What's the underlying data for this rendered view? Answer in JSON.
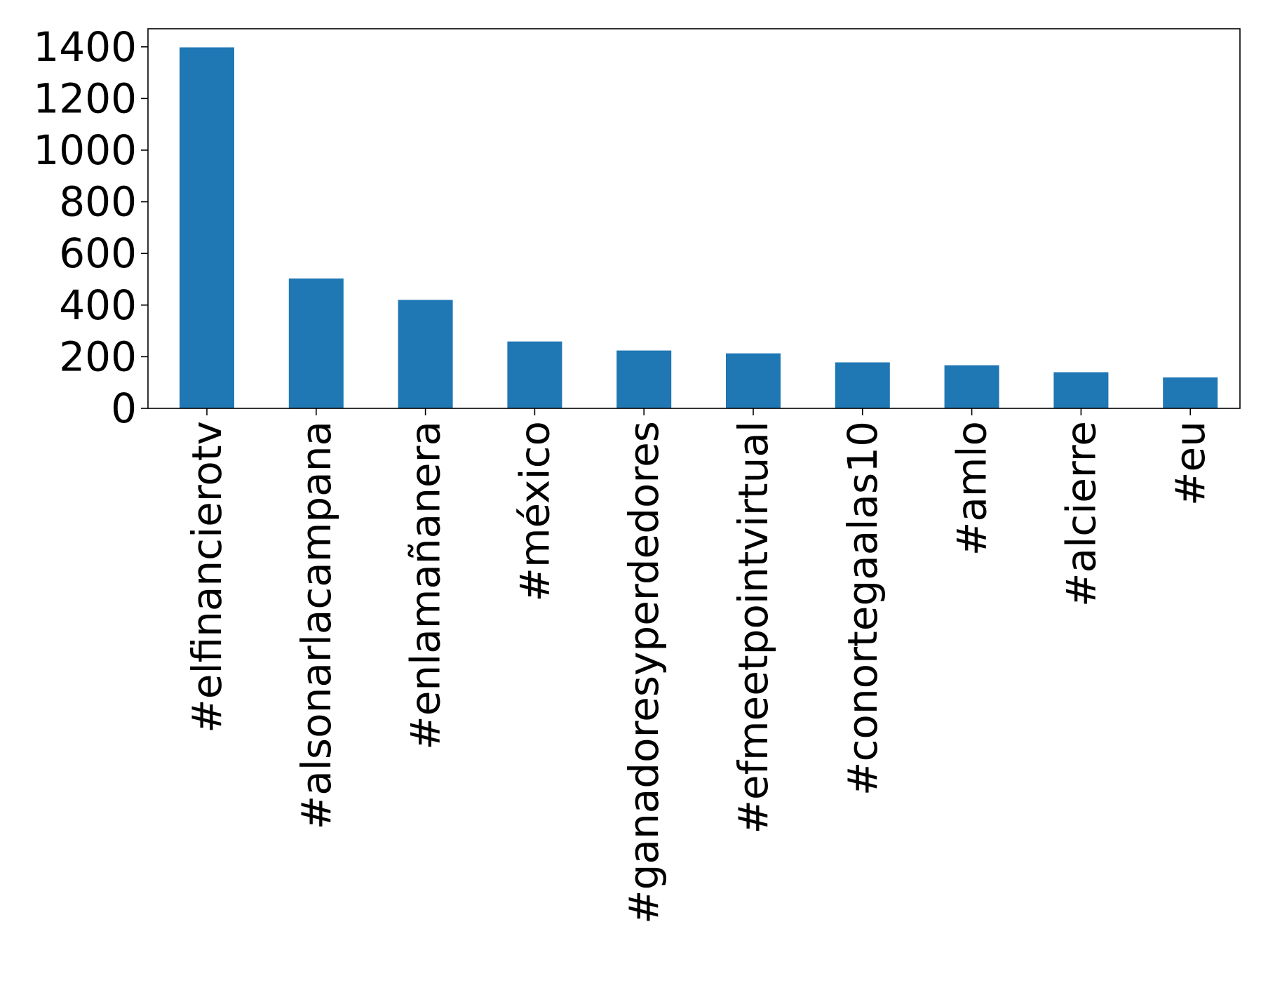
{
  "chart_data": {
    "type": "bar",
    "title": "",
    "xlabel": "",
    "ylabel": "",
    "categories": [
      "#elfinancierotv",
      "#alsonarlacampana",
      "#enlamañanera",
      "#méxico",
      "#ganadoresyperdedores",
      "#efmeetpointvirtual",
      "#conortegaalas10",
      "#amlo",
      "#alcierre",
      "#eu"
    ],
    "values": [
      1398,
      503,
      420,
      259,
      224,
      213,
      178,
      167,
      140,
      120
    ],
    "ylim": [
      0,
      1470
    ],
    "yticks": [
      0,
      200,
      400,
      600,
      800,
      1000,
      1200,
      1400
    ],
    "ytick_labels": [
      "0",
      "200",
      "400",
      "600",
      "800",
      "1000",
      "1200",
      "1400"
    ],
    "bar_color": "#1f77b4",
    "grid": false,
    "legend": "none"
  }
}
